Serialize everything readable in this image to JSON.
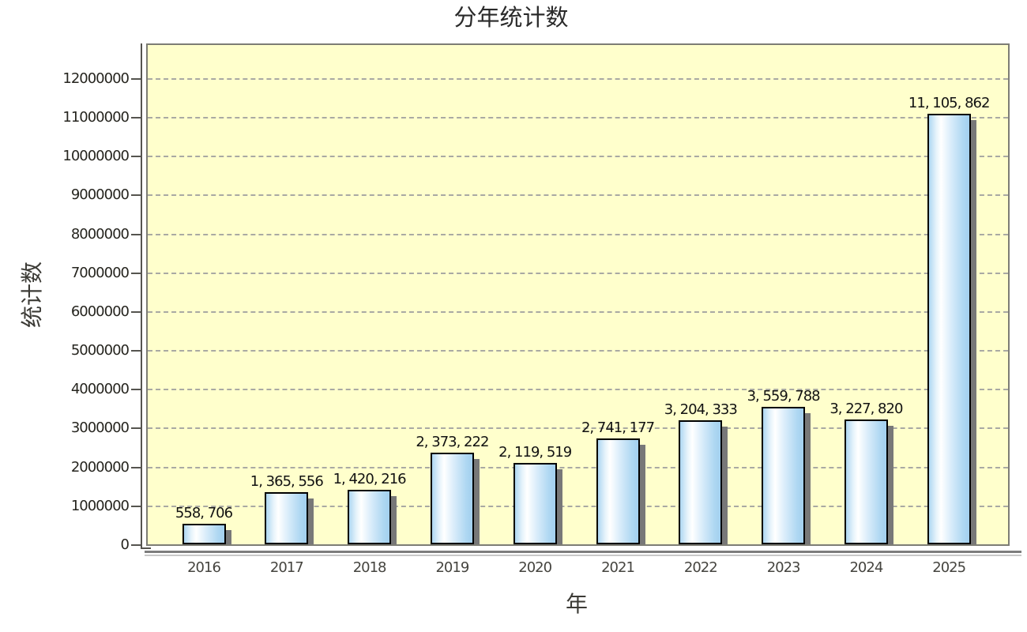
{
  "chart_data": {
    "type": "bar",
    "title": "分年统计数",
    "xlabel": "年",
    "ylabel": "统计数",
    "categories": [
      "2016",
      "2017",
      "2018",
      "2019",
      "2020",
      "2021",
      "2022",
      "2023",
      "2024",
      "2025"
    ],
    "values": [
      558706,
      1365556,
      1420216,
      2373222,
      2119519,
      2741177,
      3204333,
      3559788,
      3227820,
      11105862
    ],
    "value_labels": [
      "558, 706",
      "1, 365, 556",
      "1, 420, 216",
      "2, 373, 222",
      "2, 119, 519",
      "2, 741, 177",
      "3, 204, 333",
      "3, 559, 788",
      "3, 227, 820",
      "11, 105, 862"
    ],
    "y_ticks": [
      0,
      1000000,
      2000000,
      3000000,
      4000000,
      5000000,
      6000000,
      7000000,
      8000000,
      9000000,
      10000000,
      11000000,
      12000000
    ],
    "y_tick_labels": [
      "0",
      "1000000",
      "2000000",
      "3000000",
      "4000000",
      "5000000",
      "6000000",
      "7000000",
      "8000000",
      "9000000",
      "10000000",
      "11000000",
      "12000000"
    ],
    "ylim": [
      0,
      12900000
    ],
    "grid": "horizontal-dashed",
    "legend": "none",
    "colors": {
      "plot_background": "#ffffcc",
      "plot_border": "#7d7d75",
      "bar_fill_blue": "#aed7f2",
      "bar_fill_highlight": "#ffffff",
      "bar_border": "#000000",
      "bar_shadow": "#787878",
      "gridline": "#a9a9a3",
      "axis": "#55544f",
      "title_text": "#2a2a2a",
      "label_text": "#121212"
    }
  }
}
